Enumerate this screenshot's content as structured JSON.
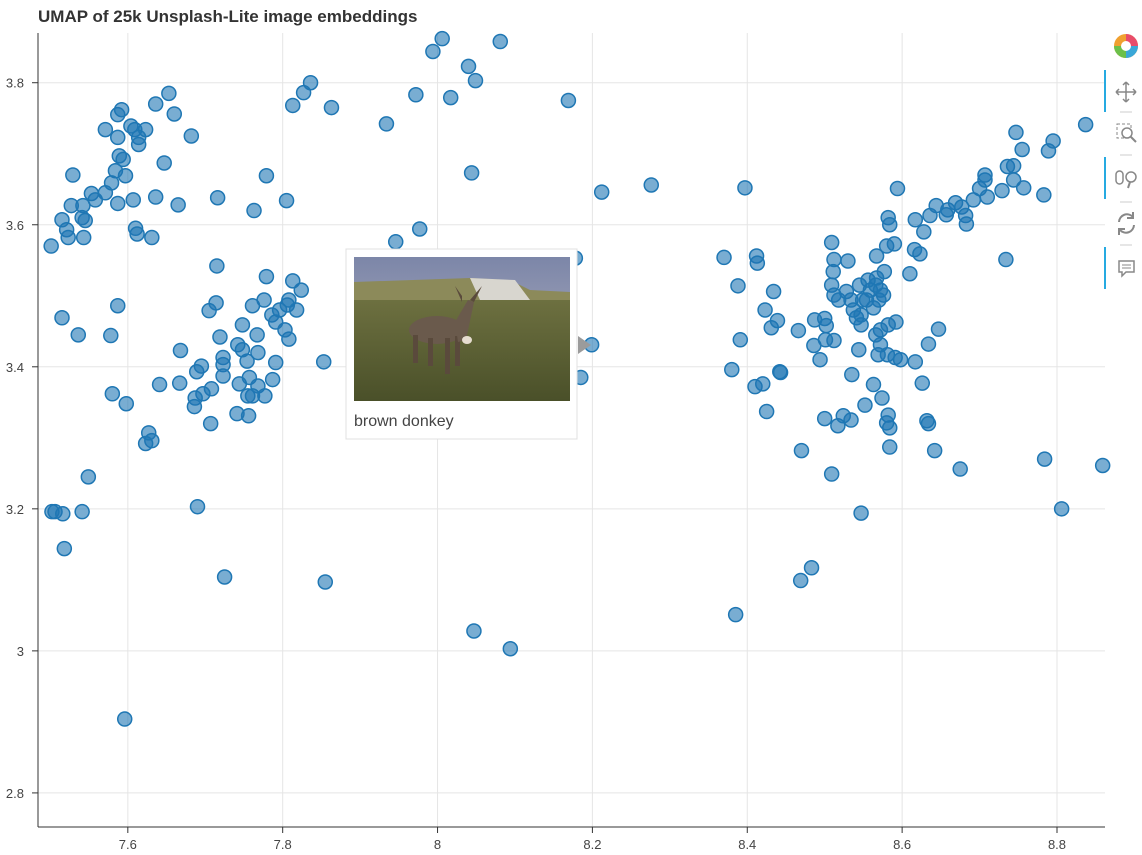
{
  "chart_data": {
    "type": "scatter",
    "title": "UMAP of 25k Unsplash-Lite image embeddings",
    "color": "#1f77b4",
    "grid": true,
    "xlim": [
      7.484,
      8.862
    ],
    "ylim": [
      2.752,
      3.87
    ],
    "xticks": [
      7.6,
      7.8,
      8,
      8.2,
      8.4,
      8.6,
      8.8
    ],
    "yticks": [
      2.8,
      3,
      3.2,
      3.4,
      3.6,
      3.8
    ],
    "x": [
      7.587,
      7.592,
      7.604,
      7.609,
      7.623,
      7.614,
      7.614,
      7.587,
      7.571,
      7.636,
      7.653,
      7.66,
      7.682,
      7.589,
      7.594,
      7.647,
      7.584,
      7.597,
      7.579,
      7.571,
      7.553,
      7.558,
      7.542,
      7.527,
      7.529,
      7.607,
      7.587,
      7.636,
      7.665,
      7.716,
      7.763,
      7.805,
      7.779,
      7.515,
      7.541,
      7.545,
      7.521,
      7.523,
      7.543,
      7.501,
      7.61,
      7.612,
      7.631,
      7.715,
      7.779,
      7.813,
      7.824,
      7.761,
      7.776,
      7.714,
      7.705,
      7.748,
      7.786,
      7.796,
      7.806,
      7.808,
      7.818,
      7.791,
      7.803,
      7.808,
      7.767,
      7.719,
      7.742,
      7.748,
      7.768,
      7.668,
      7.723,
      7.723,
      7.695,
      7.754,
      7.791,
      7.853,
      7.757,
      7.744,
      7.787,
      7.768,
      7.723,
      7.689,
      7.641,
      7.667,
      7.708,
      7.697,
      7.687,
      7.686,
      7.755,
      7.761,
      7.777,
      7.741,
      7.756,
      7.707,
      7.58,
      7.598,
      7.627,
      7.631,
      7.623,
      7.587,
      7.578,
      7.536,
      7.515,
      7.549,
      7.541,
      7.502,
      7.506,
      7.516,
      7.518,
      7.69,
      7.725,
      7.855,
      7.596,
      7.994,
      8.006,
      8.081,
      8.04,
      8.049,
      7.836,
      7.827,
      7.813,
      7.863,
      7.972,
      8.017,
      8.169,
      7.934,
      8.044,
      8.212,
      8.276,
      7.946,
      7.977,
      8.178,
      8.199,
      8.185,
      8.047,
      8.094,
      8.37,
      8.388,
      8.391,
      8.38,
      8.41,
      8.42,
      8.442,
      8.443,
      8.423,
      8.431,
      8.439,
      8.434,
      8.412,
      8.413,
      8.466,
      8.397,
      8.425,
      8.47,
      8.469,
      8.483,
      8.385,
      8.486,
      8.494,
      8.487,
      8.5,
      8.502,
      8.501,
      8.512,
      8.5,
      8.517,
      8.524,
      8.534,
      8.509,
      8.547,
      8.552,
      8.535,
      8.544,
      8.563,
      8.574,
      8.582,
      8.584,
      8.58,
      8.584,
      8.509,
      8.512,
      8.511,
      8.53,
      8.509,
      8.512,
      8.518,
      8.528,
      8.534,
      8.537,
      8.541,
      8.547,
      8.547,
      8.554,
      8.559,
      8.566,
      8.572,
      8.567,
      8.577,
      8.576,
      8.556,
      8.545,
      8.57,
      8.563,
      8.549,
      8.567,
      8.58,
      8.582,
      8.584,
      8.59,
      8.594,
      8.572,
      8.582,
      8.592,
      8.566,
      8.572,
      8.581,
      8.569,
      8.591,
      8.598,
      8.617,
      8.626,
      8.634,
      8.647,
      8.632,
      8.634,
      8.642,
      8.675,
      8.61,
      8.616,
      8.623,
      8.628,
      8.617,
      8.636,
      8.644,
      8.659,
      8.657,
      8.669,
      8.677,
      8.682,
      8.683,
      8.692,
      8.7,
      8.71,
      8.707,
      8.707,
      8.729,
      8.736,
      8.744,
      8.744,
      8.747,
      8.755,
      8.757,
      8.783,
      8.789,
      8.795,
      8.837,
      8.734,
      8.784,
      8.806,
      8.859
    ],
    "y": [
      3.755,
      3.762,
      3.739,
      3.734,
      3.734,
      3.723,
      3.713,
      3.723,
      3.734,
      3.77,
      3.785,
      3.756,
      3.725,
      3.697,
      3.692,
      3.687,
      3.676,
      3.669,
      3.659,
      3.645,
      3.644,
      3.635,
      3.627,
      3.627,
      3.67,
      3.635,
      3.63,
      3.639,
      3.628,
      3.638,
      3.62,
      3.634,
      3.669,
      3.607,
      3.61,
      3.606,
      3.593,
      3.582,
      3.582,
      3.57,
      3.595,
      3.587,
      3.582,
      3.542,
      3.527,
      3.521,
      3.508,
      3.486,
      3.494,
      3.49,
      3.479,
      3.459,
      3.473,
      3.48,
      3.487,
      3.494,
      3.48,
      3.463,
      3.452,
      3.439,
      3.445,
      3.442,
      3.431,
      3.424,
      3.42,
      3.423,
      3.413,
      3.403,
      3.401,
      3.408,
      3.406,
      3.407,
      3.385,
      3.376,
      3.382,
      3.373,
      3.387,
      3.393,
      3.375,
      3.377,
      3.369,
      3.362,
      3.356,
      3.344,
      3.359,
      3.359,
      3.359,
      3.334,
      3.331,
      3.32,
      3.362,
      3.348,
      3.307,
      3.296,
      3.292,
      3.486,
      3.444,
      3.445,
      3.469,
      3.245,
      3.196,
      3.196,
      3.196,
      3.193,
      3.144,
      3.203,
      3.104,
      3.097,
      2.904,
      3.844,
      3.862,
      3.858,
      3.823,
      3.803,
      3.8,
      3.786,
      3.768,
      3.765,
      3.783,
      3.779,
      3.775,
      3.742,
      3.673,
      3.646,
      3.656,
      3.576,
      3.594,
      3.553,
      3.431,
      3.385,
      3.028,
      3.003,
      3.554,
      3.514,
      3.438,
      3.396,
      3.372,
      3.376,
      3.393,
      3.392,
      3.48,
      3.455,
      3.465,
      3.506,
      3.556,
      3.546,
      3.451,
      3.652,
      3.337,
      3.282,
      3.099,
      3.117,
      3.051,
      3.43,
      3.41,
      3.466,
      3.468,
      3.458,
      3.438,
      3.437,
      3.327,
      3.317,
      3.331,
      3.325,
      3.249,
      3.194,
      3.346,
      3.389,
      3.424,
      3.375,
      3.356,
      3.332,
      3.314,
      3.321,
      3.287,
      3.575,
      3.551,
      3.534,
      3.549,
      3.515,
      3.501,
      3.494,
      3.506,
      3.494,
      3.48,
      3.469,
      3.473,
      3.459,
      3.494,
      3.508,
      3.515,
      3.508,
      3.525,
      3.534,
      3.501,
      3.522,
      3.515,
      3.494,
      3.483,
      3.494,
      3.556,
      3.57,
      3.61,
      3.6,
      3.573,
      3.651,
      3.452,
      3.459,
      3.463,
      3.445,
      3.431,
      3.417,
      3.417,
      3.413,
      3.41,
      3.407,
      3.377,
      3.432,
      3.453,
      3.324,
      3.32,
      3.282,
      3.256,
      3.531,
      3.565,
      3.559,
      3.59,
      3.607,
      3.613,
      3.627,
      3.621,
      3.614,
      3.631,
      3.625,
      3.613,
      3.601,
      3.635,
      3.651,
      3.639,
      3.67,
      3.663,
      3.648,
      3.682,
      3.683,
      3.663,
      3.73,
      3.706,
      3.652,
      3.642,
      3.704,
      3.718,
      3.741,
      3.551,
      3.27,
      3.2,
      3.261
    ]
  },
  "tooltip": {
    "text": "brown donkey"
  }
}
